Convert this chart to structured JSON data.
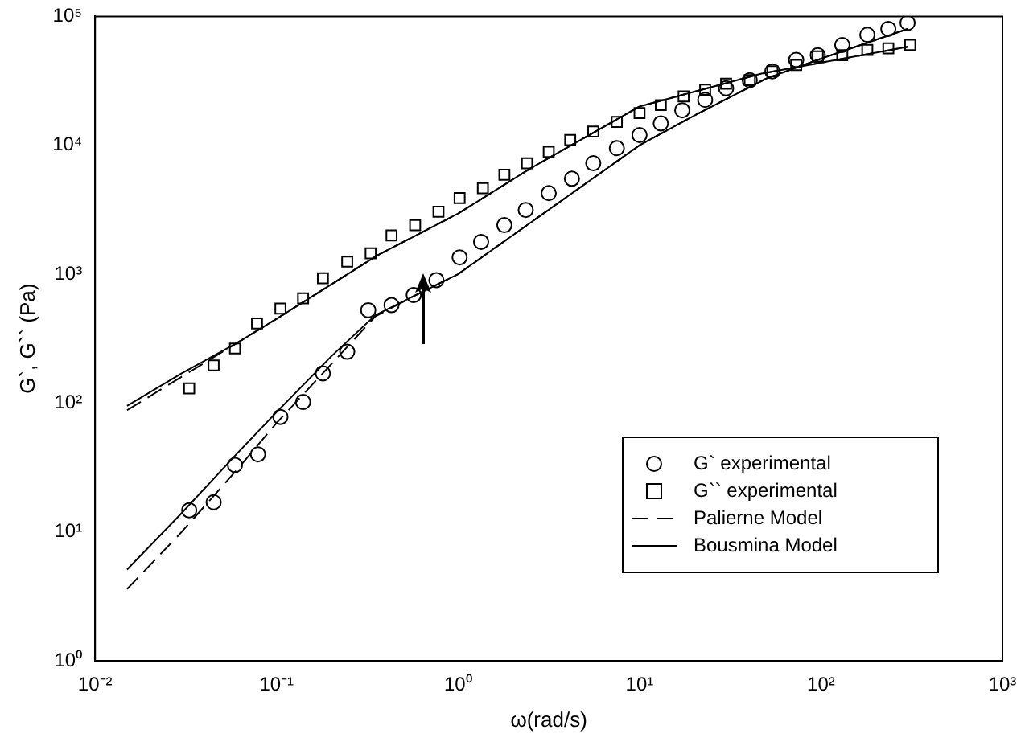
{
  "chart_data": {
    "type": "scatter",
    "xlabel": "ω(rad/s)",
    "ylabel": "G`, G`` (Pa)",
    "log": "xy",
    "grid": false,
    "legend": "bottom right",
    "xlim": [
      0.01,
      1000
    ],
    "ylim": [
      1,
      100000
    ],
    "xticks": [
      {
        "value": 0.01,
        "label": "10⁻²"
      },
      {
        "value": 0.1,
        "label": "10⁻¹"
      },
      {
        "value": 1,
        "label": "10⁰"
      },
      {
        "value": 10,
        "label": "10¹"
      },
      {
        "value": 100,
        "label": "10²"
      },
      {
        "value": 1000,
        "label": "10³"
      }
    ],
    "yticks": [
      {
        "value": 1,
        "label": "10⁰"
      },
      {
        "value": 10,
        "label": "10¹"
      },
      {
        "value": 100,
        "label": "10²"
      },
      {
        "value": 1000,
        "label": "10³"
      },
      {
        "value": 10000,
        "label": "10⁴"
      },
      {
        "value": 100000,
        "label": "10⁵"
      }
    ],
    "series": [
      {
        "type": "scatter",
        "name": "G` experimental",
        "color": "#000000",
        "marker": "circle",
        "x": [
          0.033,
          0.045,
          0.059,
          0.079,
          0.105,
          0.14,
          0.18,
          0.245,
          0.32,
          0.43,
          0.57,
          0.76,
          1.02,
          1.34,
          1.8,
          2.36,
          3.16,
          4.24,
          5.56,
          7.5,
          10,
          13.1,
          17.2,
          23,
          30,
          40.5,
          54,
          73,
          96,
          131,
          180,
          235,
          300
        ],
        "values": [
          14.7,
          17,
          33,
          40,
          78,
          102,
          170,
          250,
          525,
          575,
          690,
          900,
          1350,
          1780,
          2400,
          3150,
          4250,
          5500,
          7250,
          9500,
          12000,
          14800,
          18700,
          22500,
          27700,
          32000,
          37500,
          46000,
          50000,
          60000,
          72000,
          80000,
          89000
        ]
      },
      {
        "type": "scatter",
        "name": "G`` experimental",
        "color": "#000000",
        "marker": "square",
        "x": [
          0.033,
          0.045,
          0.059,
          0.078,
          0.105,
          0.14,
          0.18,
          0.245,
          0.33,
          0.43,
          0.58,
          0.78,
          1.02,
          1.37,
          1.8,
          2.4,
          3.16,
          4.15,
          5.56,
          7.5,
          10,
          13.1,
          17.5,
          23,
          30,
          40.5,
          54,
          73,
          96,
          131,
          180,
          235,
          310
        ],
        "values": [
          130,
          196,
          265,
          415,
          540,
          650,
          930,
          1250,
          1450,
          2000,
          2400,
          3050,
          3900,
          4650,
          5900,
          7250,
          8900,
          11000,
          12800,
          15200,
          17800,
          20500,
          24000,
          27000,
          30000,
          32000,
          37500,
          42000,
          49000,
          50000,
          55000,
          56500,
          60000
        ]
      },
      {
        "type": "line",
        "name": "Palierne Model",
        "color": "#000000",
        "line_style": "dashed",
        "x": [
          0.015,
          0.03,
          0.06,
          0.1,
          0.2,
          0.35,
          0.6,
          1,
          2,
          5,
          10,
          20,
          50,
          100,
          300
        ],
        "values": [
          3.6,
          10,
          30,
          70,
          200,
          470,
          700,
          1000,
          2000,
          5000,
          10000,
          17000,
          33000,
          47000,
          80000
        ]
      },
      {
        "type": "line",
        "color": "#000000",
        "line_style": "dashed",
        "x": [
          0.015,
          0.03,
          0.06,
          0.1,
          0.36,
          1,
          2.5,
          10,
          47,
          300
        ],
        "values": [
          88,
          160,
          290,
          450,
          1400,
          2950,
          6600,
          20000,
          36000,
          58000
        ]
      },
      {
        "type": "line",
        "name": "Bousmina Model",
        "color": "#000000",
        "line_style": "solid",
        "x": [
          0.015,
          0.03,
          0.06,
          0.1,
          0.2,
          0.35,
          0.6,
          1,
          2,
          5,
          10,
          20,
          50,
          100,
          300
        ],
        "values": [
          5.1,
          14,
          40,
          85,
          230,
          480,
          700,
          1000,
          2000,
          5000,
          10000,
          17000,
          33000,
          47000,
          80000
        ]
      },
      {
        "type": "line",
        "color": "#000000",
        "line_style": "solid",
        "x": [
          0.015,
          0.03,
          0.06,
          0.1,
          0.36,
          1,
          2.5,
          10,
          47,
          300
        ],
        "values": [
          95,
          170,
          290,
          450,
          1400,
          2950,
          6600,
          20000,
          36000,
          58000
        ]
      }
    ]
  }
}
